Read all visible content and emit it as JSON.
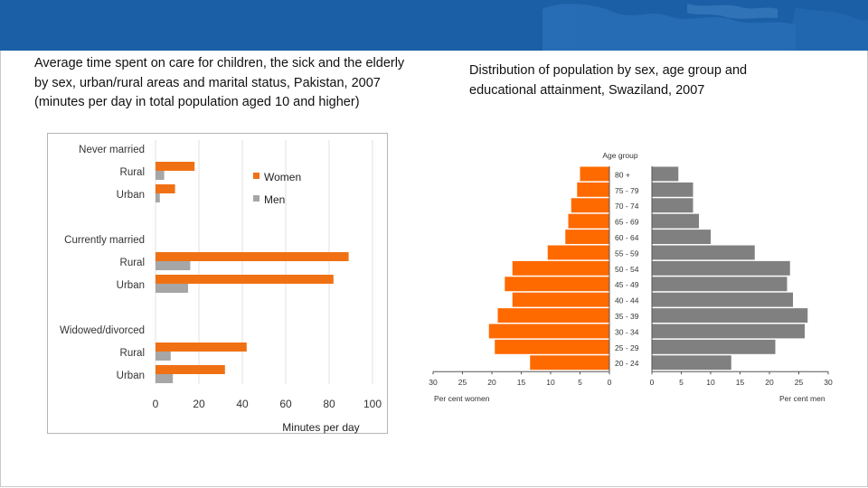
{
  "banner": {
    "color": "#1b5fa6"
  },
  "left_caption": "Average time spent on care for children, the sick and the elderly by sex, urban/rural areas and marital status, Pakistan, 2007 (minutes per day in total population aged 10 and higher)",
  "right_caption": "Distribution of population by sex, age group and educational attainment, Swaziland, 2007",
  "chart_data": [
    {
      "type": "bar",
      "orientation": "horizontal",
      "title": "",
      "xlabel": "Minutes per day",
      "ylabel": "",
      "xlim": [
        0,
        100
      ],
      "x_ticks": [
        "0",
        "20",
        "40",
        "60",
        "80",
        "100"
      ],
      "grid": true,
      "legend_position": "top-right",
      "groups": [
        "Never married",
        "Currently married",
        "Widowed/divorced"
      ],
      "rows": [
        {
          "group": "Never married",
          "category": "Rural",
          "women": 18,
          "men": 4
        },
        {
          "group": "Never married",
          "category": "Urban",
          "women": 9,
          "men": 2
        },
        {
          "group": "Currently married",
          "category": "Rural",
          "women": 89,
          "men": 16
        },
        {
          "group": "Currently married",
          "category": "Urban",
          "women": 82,
          "men": 15
        },
        {
          "group": "Widowed/divorced",
          "category": "Rural",
          "women": 42,
          "men": 7
        },
        {
          "group": "Widowed/divorced",
          "category": "Urban",
          "women": 32,
          "men": 8
        }
      ],
      "series": [
        {
          "name": "Women",
          "color": "#f07114"
        },
        {
          "name": "Men",
          "color": "#a6a6a6"
        }
      ]
    },
    {
      "type": "bar",
      "subtype": "population-pyramid",
      "title": "Age group",
      "xlabel_left": "Per cent women",
      "xlabel_right": "Per cent men",
      "left_ticks": [
        "30",
        "25",
        "20",
        "15",
        "10",
        "5",
        "0"
      ],
      "right_ticks": [
        "0",
        "5",
        "10",
        "15",
        "20",
        "25",
        "30"
      ],
      "xlim": [
        0,
        30
      ],
      "categories": [
        "80 +",
        "75 - 79",
        "70 - 74",
        "65 - 69",
        "60 - 64",
        "55 - 59",
        "50 - 54",
        "45 - 49",
        "40 - 44",
        "35 - 39",
        "30 - 34",
        "25 - 29",
        "20 - 24"
      ],
      "series": [
        {
          "name": "Women",
          "color": "#ff6a00",
          "values": [
            5,
            5.5,
            6.5,
            7,
            7.5,
            10.5,
            16.5,
            17.8,
            16.5,
            19,
            20.5,
            19.5,
            13.5
          ]
        },
        {
          "name": "Men",
          "color": "#808080",
          "values": [
            4.5,
            7,
            7,
            8,
            10,
            17.5,
            23.5,
            23,
            24,
            26.5,
            26,
            21,
            13.5
          ]
        }
      ]
    }
  ]
}
